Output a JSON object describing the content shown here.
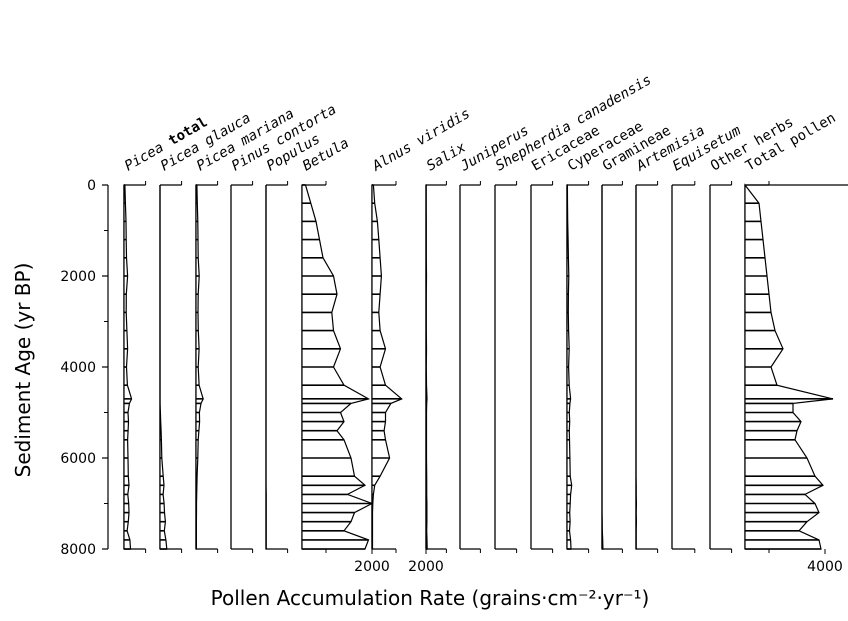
{
  "chart_data": {
    "type": "area",
    "xlabel": "Pollen Accumulation Rate (grains·cm⁻²·yr⁻¹)",
    "ylabel": "Sediment Age (yr BP)",
    "y_ticks": [
      "0",
      "2000",
      "4000",
      "6000",
      "8000"
    ],
    "ylim": [
      0,
      8000
    ],
    "ages": [
      0,
      400,
      800,
      1200,
      1600,
      2000,
      2400,
      2800,
      3200,
      3600,
      4000,
      4400,
      4700,
      4800,
      5000,
      5200,
      5400,
      5600,
      6000,
      6400,
      6600,
      6800,
      7000,
      7200,
      7400,
      7600,
      7800,
      8000
    ],
    "series": [
      {
        "name": "Picea total",
        "italic_part": "Picea",
        "plain_part": "total",
        "max": 2000,
        "values": [
          50,
          80,
          110,
          120,
          140,
          200,
          130,
          120,
          160,
          200,
          140,
          190,
          420,
          300,
          220,
          250,
          230,
          200,
          220,
          240,
          280,
          210,
          260,
          280,
          240,
          170,
          330,
          360
        ]
      },
      {
        "name": "Picea glauca",
        "max": 2000,
        "values": [
          0,
          0,
          0,
          0,
          0,
          0,
          0,
          0,
          0,
          0,
          0,
          0,
          0,
          0,
          20,
          40,
          60,
          80,
          100,
          180,
          220,
          170,
          230,
          250,
          300,
          240,
          330,
          380
        ]
      },
      {
        "name": "Picea mariana",
        "max": 2000,
        "values": [
          50,
          70,
          100,
          110,
          120,
          180,
          120,
          110,
          130,
          170,
          120,
          170,
          400,
          280,
          190,
          200,
          160,
          120,
          100,
          60,
          50,
          40,
          30,
          30,
          20,
          20,
          20,
          20
        ]
      },
      {
        "name": "Pinus contorta",
        "max": 2000,
        "values": [
          0,
          0,
          0,
          0,
          0,
          0,
          0,
          0,
          0,
          0,
          0,
          0,
          0,
          0,
          0,
          0,
          0,
          0,
          0,
          0,
          0,
          0,
          0,
          0,
          0,
          0,
          0,
          0
        ]
      },
      {
        "name": "Populus",
        "max": 2000,
        "values": [
          0,
          0,
          0,
          0,
          0,
          0,
          0,
          0,
          0,
          0,
          0,
          0,
          0,
          0,
          0,
          0,
          0,
          0,
          0,
          0,
          0,
          10,
          10,
          10,
          10,
          10,
          10,
          10
        ]
      },
      {
        "name": "Betula",
        "max": 2000,
        "values": [
          100,
          250,
          400,
          500,
          600,
          900,
          1000,
          850,
          900,
          1100,
          900,
          1200,
          1900,
          1400,
          1100,
          1200,
          1000,
          1200,
          1400,
          1500,
          1800,
          1300,
          2000,
          1500,
          1400,
          1200,
          1900,
          1800
        ]
      },
      {
        "name": "Alnus viridis",
        "max": 2000,
        "values": [
          50,
          100,
          200,
          250,
          300,
          350,
          300,
          250,
          300,
          500,
          300,
          500,
          1100,
          700,
          500,
          500,
          450,
          500,
          650,
          300,
          100,
          50,
          30,
          20,
          20,
          20,
          20,
          20
        ]
      },
      {
        "name": "Salix",
        "max": 2000,
        "values": [
          10,
          10,
          20,
          20,
          20,
          30,
          20,
          20,
          20,
          30,
          20,
          30,
          60,
          40,
          30,
          30,
          30,
          30,
          30,
          40,
          40,
          40,
          50,
          50,
          50,
          40,
          60,
          70
        ]
      },
      {
        "name": "Juniperus",
        "max": 2000,
        "values": [
          0,
          0,
          0,
          0,
          0,
          0,
          0,
          0,
          0,
          0,
          0,
          0,
          0,
          0,
          0,
          0,
          0,
          0,
          0,
          0,
          0,
          0,
          0,
          0,
          0,
          0,
          0,
          0
        ]
      },
      {
        "name": "Shepherdia canadensis",
        "max": 2000,
        "values": [
          0,
          0,
          0,
          0,
          0,
          0,
          0,
          0,
          0,
          0,
          0,
          0,
          0,
          0,
          0,
          0,
          0,
          0,
          0,
          0,
          0,
          0,
          0,
          0,
          0,
          0,
          0,
          0
        ]
      },
      {
        "name": "Ericaceae",
        "max": 2000,
        "values": [
          0,
          0,
          0,
          0,
          0,
          0,
          0,
          0,
          0,
          0,
          0,
          0,
          0,
          0,
          0,
          0,
          0,
          0,
          0,
          0,
          0,
          0,
          0,
          0,
          0,
          0,
          0,
          0
        ]
      },
      {
        "name": "Cyperaceae",
        "max": 2000,
        "values": [
          20,
          30,
          40,
          60,
          80,
          100,
          80,
          70,
          90,
          120,
          90,
          120,
          200,
          160,
          130,
          150,
          130,
          140,
          160,
          180,
          260,
          200,
          180,
          150,
          170,
          140,
          200,
          220
        ]
      },
      {
        "name": "Gramineae",
        "max": 2000,
        "values": [
          0,
          0,
          0,
          0,
          0,
          0,
          0,
          0,
          0,
          0,
          0,
          0,
          0,
          0,
          0,
          0,
          0,
          0,
          0,
          0,
          0,
          0,
          0,
          0,
          10,
          20,
          40,
          50
        ]
      },
      {
        "name": "Artemisia",
        "max": 2000,
        "values": [
          0,
          0,
          0,
          0,
          0,
          0,
          0,
          0,
          0,
          0,
          0,
          0,
          0,
          0,
          0,
          0,
          0,
          0,
          0,
          0,
          10,
          10,
          20,
          10,
          20,
          10,
          10,
          10
        ]
      },
      {
        "name": "Equisetum",
        "max": 2000,
        "values": [
          0,
          0,
          0,
          0,
          0,
          0,
          0,
          0,
          0,
          0,
          0,
          0,
          0,
          0,
          0,
          0,
          0,
          0,
          0,
          0,
          0,
          0,
          0,
          0,
          0,
          0,
          0,
          0
        ]
      },
      {
        "name": "Other herbs",
        "max": 2000,
        "values": [
          0,
          0,
          0,
          0,
          0,
          0,
          0,
          0,
          0,
          0,
          0,
          0,
          0,
          0,
          0,
          0,
          0,
          0,
          0,
          0,
          0,
          0,
          0,
          0,
          0,
          0,
          0,
          0
        ]
      },
      {
        "name": "Total pollen",
        "max": 5000,
        "values": [
          0,
          700,
          800,
          900,
          1000,
          1100,
          1200,
          1300,
          1500,
          1900,
          1300,
          1600,
          4400,
          2400,
          2400,
          2800,
          2600,
          2500,
          3100,
          3500,
          3900,
          3000,
          3500,
          3700,
          3100,
          2700,
          3700,
          3800
        ]
      }
    ],
    "bottom_scale_labels": [
      {
        "series": "Betula",
        "value": 2000,
        "label": "2000"
      },
      {
        "series": "Alnus viridis",
        "value": 2000,
        "label": "2000"
      },
      {
        "series": "Total pollen",
        "value": 4000,
        "label": "4000"
      }
    ],
    "grid": false,
    "fill": "horizontal-hatch"
  }
}
